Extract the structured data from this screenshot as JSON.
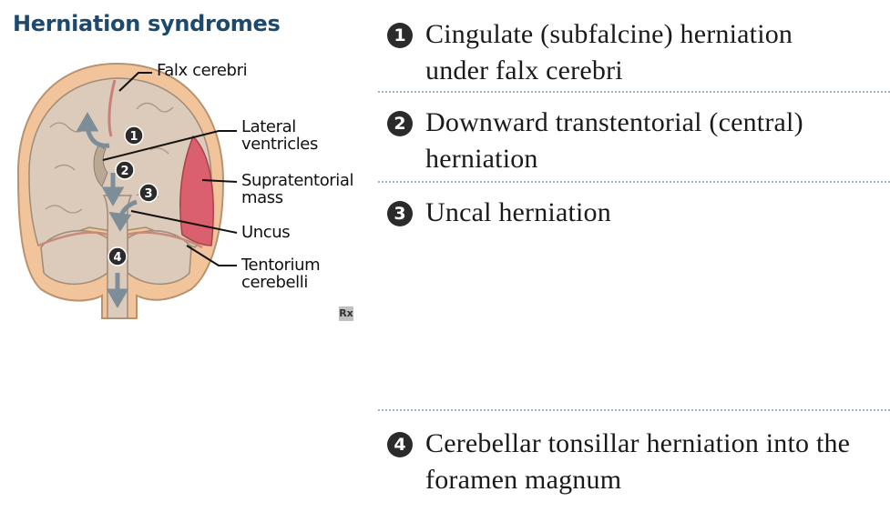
{
  "title": "Herniation syndromes",
  "figure": {
    "labels": {
      "falx": "Falx cerebri",
      "lateral_1": "Lateral",
      "lateral_2": "ventricles",
      "supra_1": "Supratentorial",
      "supra_2": "mass",
      "uncus": "Uncus",
      "tent_1": "Tentorium",
      "tent_2": "cerebelli"
    },
    "markers": [
      "1",
      "2",
      "3",
      "4"
    ],
    "logo": "Rx",
    "colors": {
      "skull": "#f2c49b",
      "brain": "#d9c9b8",
      "mass": "#d9606c",
      "arrow": "#7d8e99",
      "marker": "#2b2b2b"
    }
  },
  "items": [
    {
      "number": "1",
      "line1": "Cingulate (subfalcine) herniation",
      "line2": "under falx cerebri"
    },
    {
      "number": "2",
      "line1": "Downward transtentorial (central)",
      "line2": "herniation"
    },
    {
      "number": "3",
      "line1": "Uncal herniation",
      "line2": ""
    },
    {
      "number": "4",
      "line1": "Cerebellar tonsillar herniation into the",
      "line2": "foramen magnum"
    }
  ]
}
